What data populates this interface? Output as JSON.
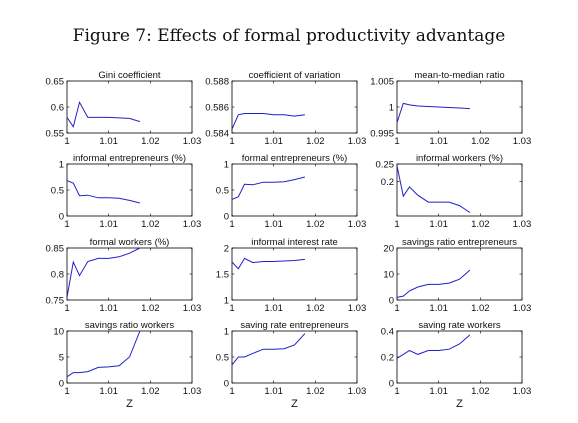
{
  "figure_title": "Figure 7: Effects of formal productivity advantage",
  "line_color": "#2020c8",
  "chart_data": [
    {
      "type": "line",
      "title": "Gini coefficient",
      "xlabel": "",
      "ylabel": "",
      "xlim": [
        1,
        1.03
      ],
      "ylim": [
        0.55,
        0.65
      ],
      "xticks": [
        1,
        1.01,
        1.02,
        1.03
      ],
      "xtick_labels": [
        "1",
        "1.01",
        "1.02",
        "1.03"
      ],
      "yticks": [
        0.55,
        0.6,
        0.65
      ],
      "ytick_labels": [
        "0.55",
        "0.6",
        "0.65"
      ],
      "x": [
        1,
        1.0015,
        1.003,
        1.005,
        1.0075,
        1.01,
        1.0125,
        1.015,
        1.0175
      ],
      "y": [
        0.58,
        0.562,
        0.609,
        0.58,
        0.58,
        0.58,
        0.579,
        0.578,
        0.572
      ]
    },
    {
      "type": "line",
      "title": "coefficient of variation",
      "xlabel": "",
      "ylabel": "",
      "xlim": [
        1,
        1.03
      ],
      "ylim": [
        0.584,
        0.588
      ],
      "xticks": [
        1,
        1.01,
        1.02,
        1.03
      ],
      "xtick_labels": [
        "1",
        "1.01",
        "1.02",
        "1.03"
      ],
      "yticks": [
        0.584,
        0.586,
        0.588
      ],
      "ytick_labels": [
        "0.584",
        "0.586",
        "0.588"
      ],
      "x": [
        1,
        1.0015,
        1.003,
        1.005,
        1.0075,
        1.01,
        1.0125,
        1.015,
        1.0175
      ],
      "y": [
        0.5843,
        0.5854,
        0.5855,
        0.5855,
        0.5855,
        0.5854,
        0.5854,
        0.5853,
        0.5854
      ]
    },
    {
      "type": "line",
      "title": "mean-to-median ratio",
      "xlabel": "",
      "ylabel": "",
      "xlim": [
        1,
        1.03
      ],
      "ylim": [
        0.995,
        1.005
      ],
      "xticks": [
        1,
        1.01,
        1.02,
        1.03
      ],
      "xtick_labels": [
        "1",
        "1.01",
        "1.02",
        "1.03"
      ],
      "yticks": [
        0.995,
        1,
        1.005
      ],
      "ytick_labels": [
        "0.995",
        "1",
        "1.005"
      ],
      "x": [
        1,
        1.0015,
        1.003,
        1.005,
        1.0075,
        1.01,
        1.0125,
        1.015,
        1.0175
      ],
      "y": [
        0.997,
        1.0007,
        1.0004,
        1.0002,
        1.0001,
        1.0,
        0.9999,
        0.9998,
        0.9997
      ]
    },
    {
      "type": "line",
      "title": "informal entrepreneurs (%)",
      "xlabel": "",
      "ylabel": "",
      "xlim": [
        1,
        1.03
      ],
      "ylim": [
        0,
        1
      ],
      "xticks": [
        1,
        1.01,
        1.02,
        1.03
      ],
      "xtick_labels": [
        "1",
        "1.01",
        "1.02",
        "1.03"
      ],
      "yticks": [
        0,
        0.5,
        1
      ],
      "ytick_labels": [
        "0",
        "0.5",
        "1"
      ],
      "x": [
        1,
        1.0015,
        1.003,
        1.005,
        1.0075,
        1.01,
        1.0125,
        1.015,
        1.0175
      ],
      "y": [
        0.68,
        0.63,
        0.39,
        0.4,
        0.35,
        0.35,
        0.34,
        0.3,
        0.25
      ]
    },
    {
      "type": "line",
      "title": "formal entrepreneurs (%)",
      "xlabel": "",
      "ylabel": "",
      "xlim": [
        1,
        1.03
      ],
      "ylim": [
        0,
        1
      ],
      "xticks": [
        1,
        1.01,
        1.02,
        1.03
      ],
      "xtick_labels": [
        "1",
        "1.01",
        "1.02",
        "1.03"
      ],
      "yticks": [
        0,
        0.5,
        1
      ],
      "ytick_labels": [
        "0",
        "0.5",
        "1"
      ],
      "x": [
        1,
        1.0015,
        1.003,
        1.005,
        1.0075,
        1.01,
        1.0125,
        1.015,
        1.0175
      ],
      "y": [
        0.32,
        0.37,
        0.61,
        0.6,
        0.65,
        0.65,
        0.66,
        0.7,
        0.75
      ]
    },
    {
      "type": "line",
      "title": "informal workers (%)",
      "xlabel": "",
      "ylabel": "",
      "xlim": [
        1,
        1.03
      ],
      "ylim": [
        0.1,
        0.25
      ],
      "xticks": [
        1,
        1.01,
        1.02,
        1.03
      ],
      "xtick_labels": [
        "1",
        "1.01",
        "1.02",
        "1.03"
      ],
      "yticks": [
        0.2,
        0.25
      ],
      "ytick_labels": [
        "0.2",
        "0.25"
      ],
      "x": [
        1,
        1.0015,
        1.003,
        1.005,
        1.0075,
        1.01,
        1.0125,
        1.015,
        1.0175
      ],
      "y": [
        0.245,
        0.157,
        0.184,
        0.16,
        0.14,
        0.14,
        0.14,
        0.13,
        0.11
      ]
    },
    {
      "type": "line",
      "title": "formal workers (%)",
      "xlabel": "",
      "ylabel": "",
      "xlim": [
        1,
        1.03
      ],
      "ylim": [
        0.75,
        0.85
      ],
      "xticks": [
        1,
        1.01,
        1.02,
        1.03
      ],
      "xtick_labels": [
        "1",
        "1.01",
        "1.02",
        "1.03"
      ],
      "yticks": [
        0.75,
        0.8,
        0.85
      ],
      "ytick_labels": [
        "0.75",
        "0.8",
        "0.85"
      ],
      "x": [
        1,
        1.0015,
        1.003,
        1.005,
        1.0075,
        1.01,
        1.0125,
        1.015,
        1.0175
      ],
      "y": [
        0.755,
        0.823,
        0.797,
        0.824,
        0.83,
        0.83,
        0.833,
        0.84,
        0.85
      ]
    },
    {
      "type": "line",
      "title": "informal interest rate",
      "xlabel": "",
      "ylabel": "",
      "xlim": [
        1,
        1.03
      ],
      "ylim": [
        1,
        2
      ],
      "xticks": [
        1,
        1.01,
        1.02,
        1.03
      ],
      "xtick_labels": [
        "1",
        "1.01",
        "1.02",
        "1.03"
      ],
      "yticks": [
        1,
        1.5,
        2
      ],
      "ytick_labels": [
        "1",
        "1.5",
        "2"
      ],
      "x": [
        1,
        1.0015,
        1.003,
        1.005,
        1.0075,
        1.01,
        1.0125,
        1.015,
        1.0175
      ],
      "y": [
        1.73,
        1.6,
        1.8,
        1.72,
        1.74,
        1.74,
        1.75,
        1.76,
        1.78
      ]
    },
    {
      "type": "line",
      "title": "savings ratio entrepreneurs",
      "xlabel": "",
      "ylabel": "",
      "xlim": [
        1,
        1.03
      ],
      "ylim": [
        0,
        20
      ],
      "xticks": [
        1,
        1.01,
        1.02,
        1.03
      ],
      "xtick_labels": [
        "1",
        "1.01",
        "1.02",
        "1.03"
      ],
      "yticks": [
        0,
        10,
        20
      ],
      "ytick_labels": [
        "0",
        "10",
        "20"
      ],
      "x": [
        1,
        1.0015,
        1.003,
        1.005,
        1.0075,
        1.01,
        1.0125,
        1.015,
        1.0175
      ],
      "y": [
        1,
        1.5,
        3.5,
        5,
        6,
        6,
        6.5,
        8,
        11.5
      ]
    },
    {
      "type": "line",
      "title": "savings ratio workers",
      "xlabel": "Z",
      "ylabel": "",
      "xlim": [
        1,
        1.03
      ],
      "ylim": [
        0,
        10
      ],
      "xticks": [
        1,
        1.01,
        1.02,
        1.03
      ],
      "xtick_labels": [
        "1",
        "1.01",
        "1.02",
        "1.03"
      ],
      "yticks": [
        0,
        5,
        10
      ],
      "ytick_labels": [
        "0",
        "5",
        "10"
      ],
      "x": [
        1,
        1.0015,
        1.003,
        1.005,
        1.0075,
        1.01,
        1.0125,
        1.015,
        1.0175
      ],
      "y": [
        1.2,
        2,
        2,
        2.2,
        3,
        3.1,
        3.3,
        5,
        10
      ]
    },
    {
      "type": "line",
      "title": "saving rate entrepreneurs",
      "xlabel": "Z",
      "ylabel": "",
      "xlim": [
        1,
        1.03
      ],
      "ylim": [
        0,
        1
      ],
      "xticks": [
        1,
        1.01,
        1.02,
        1.03
      ],
      "xtick_labels": [
        "1",
        "1.01",
        "1.02",
        "1.03"
      ],
      "yticks": [
        0,
        0.5,
        1
      ],
      "ytick_labels": [
        "0",
        "0.5",
        "1"
      ],
      "x": [
        1,
        1.0015,
        1.003,
        1.005,
        1.0075,
        1.01,
        1.0125,
        1.015,
        1.0175
      ],
      "y": [
        0.35,
        0.5,
        0.5,
        0.57,
        0.65,
        0.65,
        0.66,
        0.73,
        0.95
      ]
    },
    {
      "type": "line",
      "title": "saving rate workers",
      "xlabel": "Z",
      "ylabel": "",
      "xlim": [
        1,
        1.03
      ],
      "ylim": [
        0,
        0.4
      ],
      "xticks": [
        1,
        1.01,
        1.02,
        1.03
      ],
      "xtick_labels": [
        "1",
        "1.01",
        "1.02",
        "1.03"
      ],
      "yticks": [
        0,
        0.2,
        0.4
      ],
      "ytick_labels": [
        "0",
        "0.2",
        "0.4"
      ],
      "x": [
        1,
        1.0015,
        1.003,
        1.005,
        1.0075,
        1.01,
        1.0125,
        1.015,
        1.0175
      ],
      "y": [
        0.19,
        0.22,
        0.25,
        0.22,
        0.25,
        0.25,
        0.26,
        0.3,
        0.37
      ]
    }
  ]
}
